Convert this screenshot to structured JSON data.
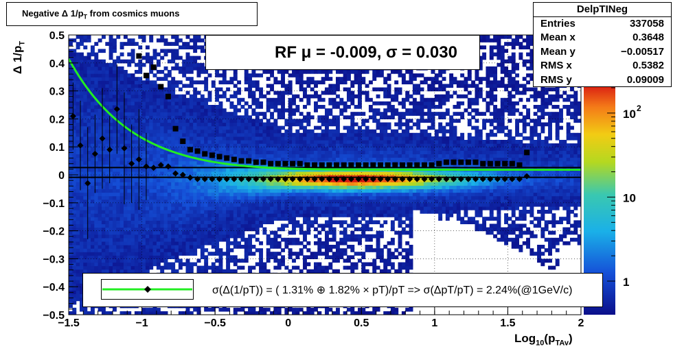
{
  "title": "Negative Δ 1/p",
  "title_sub": "T",
  "title_suffix": "from cosmics muons",
  "stats": {
    "name": "DelpTINeg",
    "rows": [
      {
        "label": "Entries",
        "value": "337058"
      },
      {
        "label": "Mean x",
        "value": "0.3648"
      },
      {
        "label": "Mean y",
        "value": "−0.00517"
      },
      {
        "label": "RMS x",
        "value": "0.5382"
      },
      {
        "label": "RMS y",
        "value": "0.09009"
      }
    ]
  },
  "rf_legend": "RF μ = -0.009, σ =   0.030",
  "resolution_text": "σ(Δ(1/pT)) = ( 1.31% ⊕  1.82% × pT)/pT => σ(ΔpT/pT) =  2.24%(@1GeV/c)",
  "ylabel": "Δ 1/p",
  "ylabel_sub": "T",
  "xlabel": "Log",
  "xlabel_sub1": "10",
  "xlabel_mid": "(p",
  "xlabel_sub2": "TAv",
  "xlabel_end": ")",
  "colors": {
    "fit_line": "#22ee22",
    "markers": "#000000",
    "frame": "#000000"
  },
  "chart_data": {
    "type": "heatmap",
    "xlim": [
      -1.5,
      2
    ],
    "ylim": [
      -0.5,
      0.5
    ],
    "x_ticks": [
      "−1.5",
      "−1",
      "−0.5",
      "0",
      "0.5",
      "1",
      "1.5",
      "2"
    ],
    "y_ticks": [
      "0.5",
      "0.4",
      "0.3",
      "0.2",
      "0.1",
      "0",
      "−0.1",
      "−0.2",
      "−0.3",
      "−0.4",
      "−0.5"
    ],
    "z_ticks": [
      "1",
      "10",
      "10^2"
    ],
    "grid": true,
    "legend_position": "top-right",
    "mean_points": {
      "x": [
        -1.47,
        -1.42,
        -1.37,
        -1.32,
        -1.27,
        -1.22,
        -1.17,
        -1.12,
        -1.07,
        -1.02,
        -0.97,
        -0.92,
        -0.87,
        -0.82,
        -0.77,
        -0.72,
        -0.67,
        -0.62,
        -0.57,
        -0.52,
        -0.47,
        -0.42,
        -0.37,
        -0.32,
        -0.27,
        -0.22,
        -0.17,
        -0.12,
        -0.07,
        -0.02,
        0.03,
        0.08,
        0.13,
        0.18,
        0.23,
        0.28,
        0.33,
        0.38,
        0.43,
        0.48,
        0.53,
        0.58,
        0.63,
        0.68,
        0.73,
        0.78,
        0.83,
        0.88,
        0.93,
        0.98,
        1.03,
        1.08,
        1.13,
        1.18,
        1.23,
        1.28,
        1.33,
        1.38,
        1.43,
        1.48,
        1.53,
        1.58,
        1.63
      ],
      "y": [
        0.21,
        0.105,
        -0.03,
        0.075,
        0.13,
        0.09,
        0.235,
        0.095,
        0.04,
        0.055,
        0.03,
        0.025,
        0.035,
        0.03,
        0.005,
        0.0,
        -0.01,
        -0.015,
        -0.015,
        -0.015,
        -0.015,
        -0.015,
        -0.015,
        -0.015,
        -0.015,
        -0.015,
        -0.015,
        -0.015,
        -0.015,
        -0.015,
        -0.015,
        -0.015,
        -0.015,
        -0.015,
        -0.015,
        -0.015,
        -0.015,
        -0.015,
        -0.015,
        -0.015,
        -0.015,
        -0.015,
        -0.015,
        -0.015,
        -0.015,
        -0.015,
        -0.015,
        -0.015,
        -0.015,
        -0.015,
        -0.015,
        -0.015,
        -0.015,
        -0.015,
        -0.015,
        -0.015,
        -0.015,
        -0.015,
        -0.015,
        -0.015,
        -0.015,
        -0.015,
        -0.005
      ]
    },
    "sigma_points": {
      "x": [
        -1.02,
        -0.97,
        -0.92,
        -0.87,
        -0.82,
        -0.77,
        -0.72,
        -0.67,
        -0.62,
        -0.57,
        -0.52,
        -0.47,
        -0.42,
        -0.37,
        -0.32,
        -0.27,
        -0.22,
        -0.17,
        -0.12,
        -0.07,
        -0.02,
        0.03,
        0.08,
        0.13,
        0.18,
        0.23,
        0.28,
        0.33,
        0.38,
        0.43,
        0.48,
        0.53,
        0.58,
        0.63,
        0.68,
        0.73,
        0.78,
        0.83,
        0.88,
        0.93,
        0.98,
        1.03,
        1.08,
        1.13,
        1.18,
        1.23,
        1.28,
        1.33,
        1.38,
        1.43,
        1.48,
        1.53,
        1.58,
        1.63
      ],
      "y": [
        0.425,
        0.355,
        0.385,
        0.315,
        0.28,
        0.165,
        0.12,
        0.09,
        0.085,
        0.075,
        0.07,
        0.065,
        0.06,
        0.055,
        0.05,
        0.05,
        0.045,
        0.045,
        0.04,
        0.04,
        0.04,
        0.04,
        0.04,
        0.035,
        0.035,
        0.035,
        0.035,
        0.035,
        0.035,
        0.035,
        0.035,
        0.035,
        0.035,
        0.035,
        0.035,
        0.035,
        0.035,
        0.035,
        0.035,
        0.035,
        0.035,
        0.04,
        0.045,
        0.045,
        0.045,
        0.045,
        0.045,
        0.04,
        0.04,
        0.04,
        0.04,
        0.04,
        0.035,
        0.08
      ]
    },
    "fit_curve": {
      "name": "",
      "form": "sqrt(a^2 + (b*pT)^2)/pT",
      "a": 0.0131,
      "b": 0.0182
    },
    "rf_mean": -0.009,
    "rf_sigma": 0.03
  }
}
